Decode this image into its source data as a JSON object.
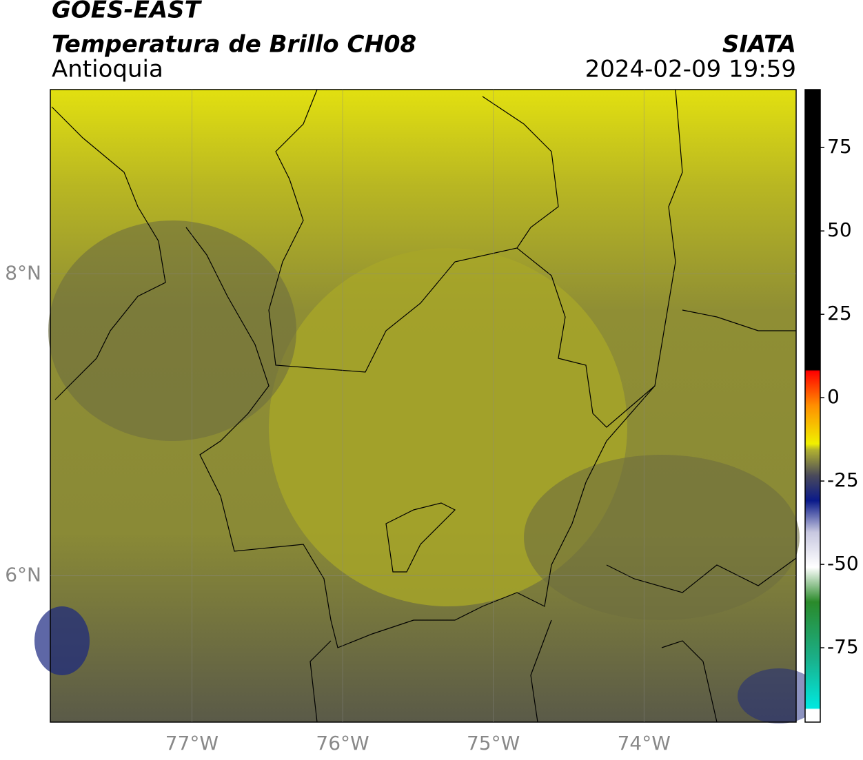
{
  "header": {
    "title": "GOES-EAST",
    "subtitle": "Temperatura de Brillo CH08",
    "region": "Antioquia",
    "source": "SIATA",
    "datetime": "2024-02-09 19:59"
  },
  "map": {
    "xlim": [
      -77.94,
      -72.99
    ],
    "ylim": [
      5.03,
      9.22
    ],
    "xticks": [
      {
        "value": -77,
        "label": "77°W"
      },
      {
        "value": -76,
        "label": "76°W"
      },
      {
        "value": -75,
        "label": "75°W"
      },
      {
        "value": -74,
        "label": "74°W"
      }
    ],
    "yticks": [
      {
        "value": 6,
        "label": "6°N"
      },
      {
        "value": 8,
        "label": "8°N"
      }
    ],
    "grid": true
  },
  "colorbar": {
    "lim": [
      -97.3,
      92.4
    ],
    "ticks": [
      -75,
      -50,
      -25,
      0,
      25,
      50,
      75
    ]
  }
}
